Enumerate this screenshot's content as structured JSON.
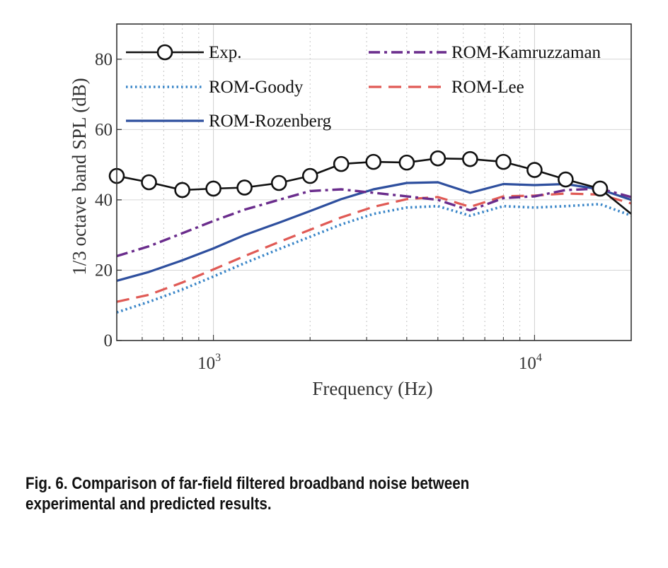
{
  "chart_data": {
    "type": "line",
    "xscale": "log",
    "xlabel": "Frequency  (Hz)",
    "ylabel": "1/3 octave band SPL (dB)",
    "xlim": [
      500,
      20000
    ],
    "ylim": [
      0,
      90
    ],
    "yticks": [
      0,
      20,
      40,
      60,
      80
    ],
    "xtick_labels": [
      {
        "value": 1000,
        "base": "10",
        "exp": "3"
      },
      {
        "value": 10000,
        "base": "10",
        "exp": "4"
      }
    ],
    "grid": true,
    "legend_position": "top",
    "x": [
      500,
      630,
      800,
      1000,
      1250,
      1600,
      2000,
      2500,
      3150,
      4000,
      5000,
      6300,
      8000,
      10000,
      12500,
      16000,
      20000
    ],
    "series": [
      {
        "name": "Exp.",
        "color": "#111111",
        "style": "solid-marker",
        "values": [
          46.8,
          45.0,
          42.8,
          43.2,
          43.5,
          44.8,
          46.8,
          50.2,
          50.8,
          50.6,
          51.8,
          51.6,
          50.8,
          48.5,
          45.8,
          43.2,
          36.0
        ]
      },
      {
        "name": "ROM-Goody",
        "color": "#3a86c8",
        "style": "dotted",
        "values": [
          8.0,
          11.0,
          14.5,
          18.2,
          22.0,
          26.0,
          29.5,
          33.0,
          36.0,
          37.8,
          38.2,
          35.5,
          38.2,
          37.8,
          38.2,
          38.8,
          35.5
        ]
      },
      {
        "name": "ROM-Rozenberg",
        "color": "#2e4f9e",
        "style": "solid",
        "values": [
          17.0,
          19.5,
          22.8,
          26.2,
          30.0,
          33.5,
          36.8,
          40.2,
          43.0,
          44.8,
          45.0,
          42.0,
          44.5,
          44.2,
          44.5,
          43.0,
          40.0
        ]
      },
      {
        "name": "ROM-Kamruzzaman",
        "color": "#6a2c8c",
        "style": "dashdot",
        "values": [
          24.0,
          26.8,
          30.5,
          34.0,
          37.2,
          40.0,
          42.5,
          43.0,
          42.0,
          41.0,
          40.0,
          37.0,
          40.5,
          41.0,
          42.8,
          43.2,
          40.8
        ]
      },
      {
        "name": "ROM-Lee",
        "color": "#e05a55",
        "style": "dashed",
        "values": [
          11.0,
          13.0,
          16.5,
          20.2,
          24.0,
          28.0,
          31.5,
          35.0,
          38.0,
          40.2,
          40.8,
          38.0,
          41.0,
          41.2,
          41.8,
          41.5,
          39.0
        ]
      }
    ]
  },
  "caption": "Fig. 6. Comparison of far-field filtered broadband noise between experimental and predicted results."
}
